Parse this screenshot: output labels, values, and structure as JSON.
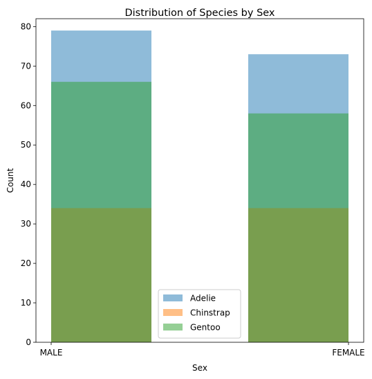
{
  "chart_data": {
    "type": "bar",
    "title": "Distribution of Species by Sex",
    "xlabel": "Sex",
    "ylabel": "Count",
    "categories": [
      "MALE",
      "FEMALE"
    ],
    "ylim": [
      0,
      82
    ],
    "yticks": [
      0,
      10,
      20,
      30,
      40,
      50,
      60,
      70,
      80
    ],
    "grid": false,
    "legend_position": "lower-center",
    "bar_opacity": 0.5,
    "series": [
      {
        "name": "Adelie",
        "values": [
          79,
          73
        ],
        "color": "#1f77b4"
      },
      {
        "name": "Chinstrap",
        "values": [
          34,
          34
        ],
        "color": "#ff7f0e"
      },
      {
        "name": "Gentoo",
        "values": [
          66,
          58
        ],
        "color": "#2ca02c"
      }
    ]
  }
}
